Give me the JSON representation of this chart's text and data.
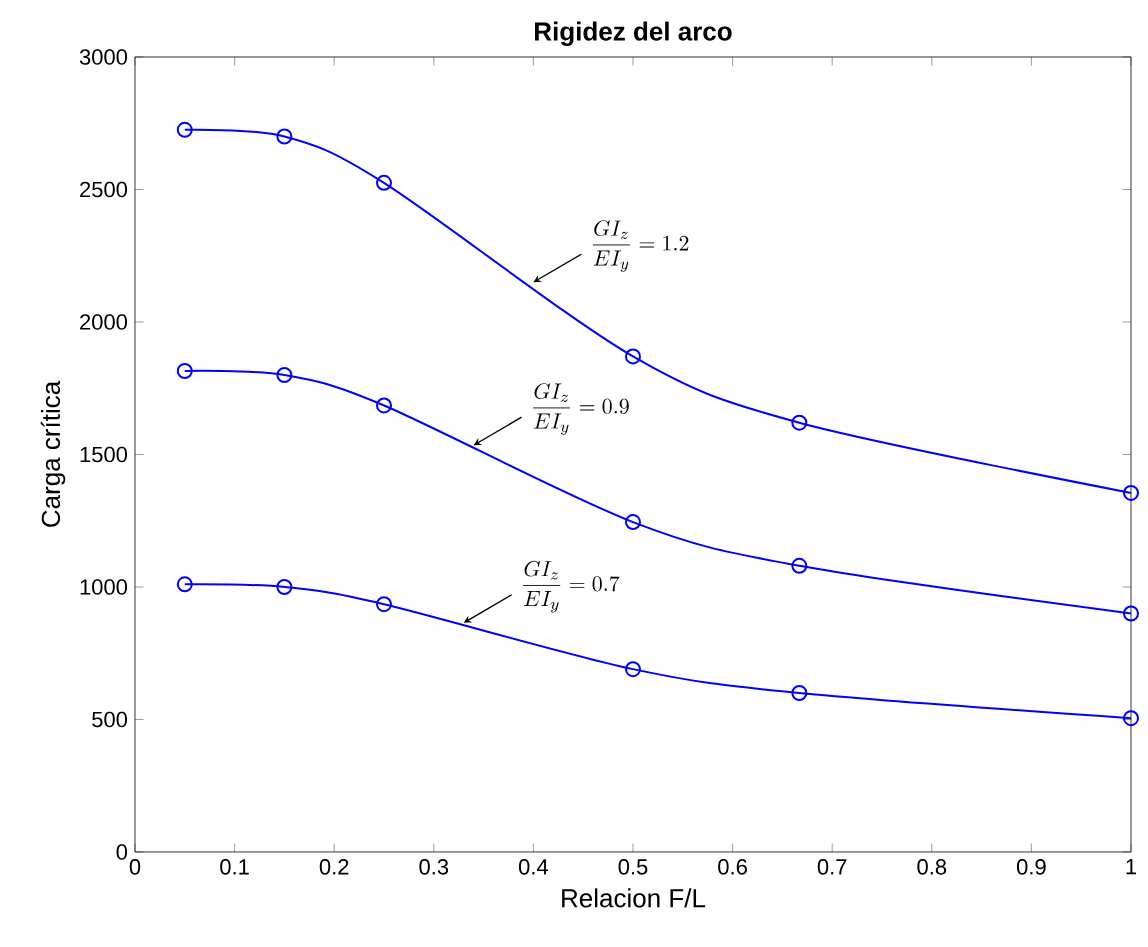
{
  "chart_data": {
    "type": "line",
    "title": "Rigidez del arco",
    "xlabel": "Relacion F/L",
    "ylabel": "Carga crítica",
    "x": [
      0.05,
      0.15,
      0.25,
      0.5,
      0.667,
      1
    ],
    "series": [
      {
        "color": "#0000ff",
        "values": [
          2725,
          2700,
          2525,
          1870,
          1620,
          1355
        ]
      },
      {
        "color": "#0000ff",
        "values": [
          1815,
          1800,
          1685,
          1245,
          1080,
          900
        ]
      },
      {
        "color": "#0000ff",
        "values": [
          1010,
          1000,
          935,
          690,
          600,
          505
        ]
      }
    ],
    "xlim": [
      0,
      1
    ],
    "ylim": [
      0,
      3000
    ],
    "xticks": [
      0,
      0.1,
      0.2,
      0.3,
      0.4,
      0.5,
      0.6,
      0.7,
      0.8,
      0.9,
      1
    ],
    "yticks": [
      0,
      500,
      1000,
      1500,
      2000,
      2500,
      3000
    ],
    "marker": "circle",
    "line_style": "solid",
    "grid": false,
    "legend": false,
    "annotations": [
      {
        "text": "\\frac{GI_z}{EI_y}=1.2",
        "x": 0.4,
        "y": 2150
      },
      {
        "text": "\\frac{GI_z}{EI_y}=0.9",
        "x": 0.34,
        "y": 1535
      },
      {
        "text": "\\frac{GI_z}{EI_y}=0.7",
        "x": 0.33,
        "y": 865
      }
    ]
  }
}
